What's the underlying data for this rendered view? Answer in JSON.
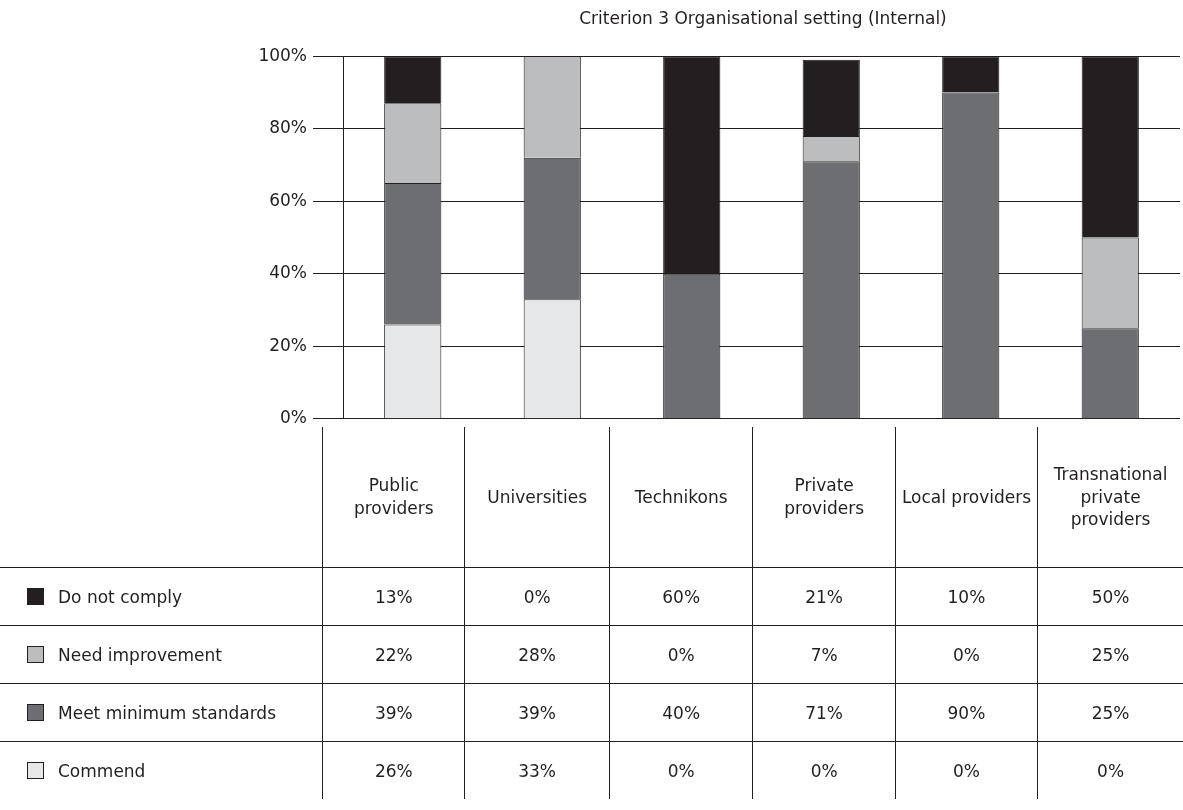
{
  "chart_data": {
    "type": "bar",
    "title": "Criterion 3 Organisational setting (Internal)",
    "categories": [
      "Public providers",
      "Universities",
      "Technikons",
      "Private providers",
      "Local providers",
      "Transnational private providers"
    ],
    "stacked": true,
    "data_labels": true,
    "grid": "y",
    "legend": "bottom",
    "ylim": [
      0,
      100
    ],
    "yticks": [
      {
        "value": 0,
        "label": "0%"
      },
      {
        "value": 20,
        "label": "20%"
      },
      {
        "value": 40,
        "label": "40%"
      },
      {
        "value": 60,
        "label": "60%"
      },
      {
        "value": 80,
        "label": "80%"
      },
      {
        "value": 100,
        "label": "100%"
      }
    ],
    "series": [
      {
        "name": "Commend",
        "color": "#e6e7e8",
        "values": [
          26,
          33,
          0,
          0,
          0,
          0
        ],
        "value_labels": [
          "26%",
          "33%",
          "0%",
          "0%",
          "0%",
          "0%"
        ]
      },
      {
        "name": "Meet minimum standards",
        "color": "#6d6e71",
        "values": [
          39,
          39,
          40,
          71,
          90,
          25
        ],
        "value_labels": [
          "39%",
          "39%",
          "40%",
          "71%",
          "90%",
          "25%"
        ]
      },
      {
        "name": "Need improvement",
        "color": "#bcbdbf",
        "values": [
          22,
          28,
          0,
          7,
          0,
          25
        ],
        "value_labels": [
          "22%",
          "28%",
          "0%",
          "7%",
          "0%",
          "25%"
        ]
      },
      {
        "name": "Do not comply",
        "color": "#231f20",
        "values": [
          13,
          0,
          60,
          21,
          10,
          50
        ],
        "value_labels": [
          "13%",
          "0%",
          "60%",
          "21%",
          "10%",
          "50%"
        ]
      }
    ]
  }
}
